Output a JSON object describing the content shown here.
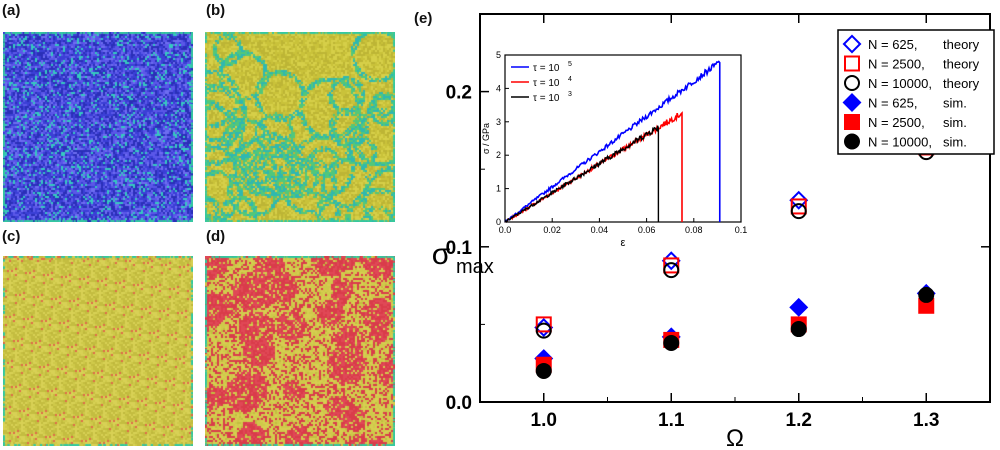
{
  "panels": {
    "a": {
      "label": "(a)",
      "palette": [
        "#3b3fd6",
        "#5a57e8",
        "#2a2fb8",
        "#36c9c0",
        "#6d6df0"
      ]
    },
    "b": {
      "label": "(b)",
      "palette": [
        "#c9c23a",
        "#d6cf48",
        "#bdb535",
        "#52c77a",
        "#2fb8b0"
      ]
    },
    "c": {
      "label": "(c)",
      "palette": [
        "#cfc94a",
        "#d8d155",
        "#c4bd40",
        "#bfb83c",
        "#e06a4a"
      ]
    },
    "d": {
      "label": "(d)",
      "palette": [
        "#cfc94a",
        "#d6ce50",
        "#d93c4a",
        "#e04856",
        "#c4bd40"
      ]
    }
  },
  "figure_label": "(e)",
  "colors": {
    "theory": "#0000ff",
    "theory2500": "#ff0000",
    "theory10000": "#000000",
    "tau5": "#0000ff",
    "tau4": "#ff0000",
    "tau3": "#000000"
  },
  "chart_data": [
    {
      "type": "scatter",
      "title": "",
      "xlabel": "Ω",
      "ylabel": "σ",
      "ylabel_sub": "max",
      "xlim": [
        0.95,
        1.35
      ],
      "ylim": [
        0,
        0.25
      ],
      "xticks": [
        1.0,
        1.1,
        1.2,
        1.3
      ],
      "xtick_labels": [
        "1.0",
        "1.1",
        "1.2",
        "1.3"
      ],
      "yticks": [
        0,
        0.1,
        0.2
      ],
      "ytick_labels": [
        "0.0",
        "0.1",
        "0.2"
      ],
      "legend_position": "top-right",
      "series": [
        {
          "name": "N = 625,",
          "suffix": "theory",
          "marker": "diamond-open",
          "color": "#0000ff",
          "x": [
            1.0,
            1.1,
            1.2,
            1.3
          ],
          "y": [
            0.048,
            0.091,
            0.13,
            0.165
          ]
        },
        {
          "name": "N = 2500,",
          "suffix": "theory",
          "marker": "square-open",
          "color": "#ff0000",
          "x": [
            1.0,
            1.1,
            1.2,
            1.3
          ],
          "y": [
            0.05,
            0.088,
            0.126,
            0.164
          ]
        },
        {
          "name": "N = 10000,",
          "suffix": "theory",
          "marker": "circle-open",
          "color": "#000000",
          "x": [
            1.0,
            1.1,
            1.2,
            1.3
          ],
          "y": [
            0.046,
            0.085,
            0.123,
            0.161
          ]
        },
        {
          "name": "N = 625,",
          "suffix": "sim.",
          "marker": "diamond-filled",
          "color": "#0000ff",
          "x": [
            1.0,
            1.1,
            1.2,
            1.3
          ],
          "y": [
            0.028,
            0.042,
            0.061,
            0.07
          ]
        },
        {
          "name": "N = 2500,",
          "suffix": "sim.",
          "marker": "square-filled",
          "color": "#ff0000",
          "x": [
            1.0,
            1.1,
            1.2,
            1.3
          ],
          "y": [
            0.024,
            0.04,
            0.05,
            0.062
          ]
        },
        {
          "name": "N = 10000,",
          "suffix": "sim.",
          "marker": "circle-filled",
          "color": "#000000",
          "x": [
            1.0,
            1.1,
            1.2,
            1.3
          ],
          "y": [
            0.02,
            0.038,
            0.047,
            0.069
          ]
        }
      ]
    },
    {
      "type": "line",
      "title": "",
      "xlabel": "ε",
      "ylabel": "σ / GPa",
      "xlim": [
        0,
        0.1
      ],
      "ylim": [
        0,
        5
      ],
      "xticks": [
        0,
        0.02,
        0.04,
        0.06,
        0.08,
        0.1
      ],
      "xtick_labels": [
        "0.0",
        "0.02",
        "0.04",
        "0.06",
        "0.08",
        "0.1"
      ],
      "yticks": [
        0,
        1,
        2,
        3,
        4,
        5
      ],
      "ytick_labels": [
        "0",
        "1",
        "2",
        "3",
        "4",
        "5"
      ],
      "legend_position": "top-left",
      "series": [
        {
          "name": "τ = 10",
          "exponent": "5",
          "color": "#0000ff",
          "strain_at_failure": 0.091,
          "stress_at_failure": 4.8,
          "slope": 52.7
        },
        {
          "name": "τ = 10",
          "exponent": "4",
          "color": "#ff0000",
          "strain_at_failure": 0.075,
          "stress_at_failure": 3.2,
          "slope": 43.5
        },
        {
          "name": "τ = 10",
          "exponent": "3",
          "color": "#000000",
          "strain_at_failure": 0.065,
          "stress_at_failure": 2.8,
          "slope": 43.8
        }
      ]
    }
  ]
}
